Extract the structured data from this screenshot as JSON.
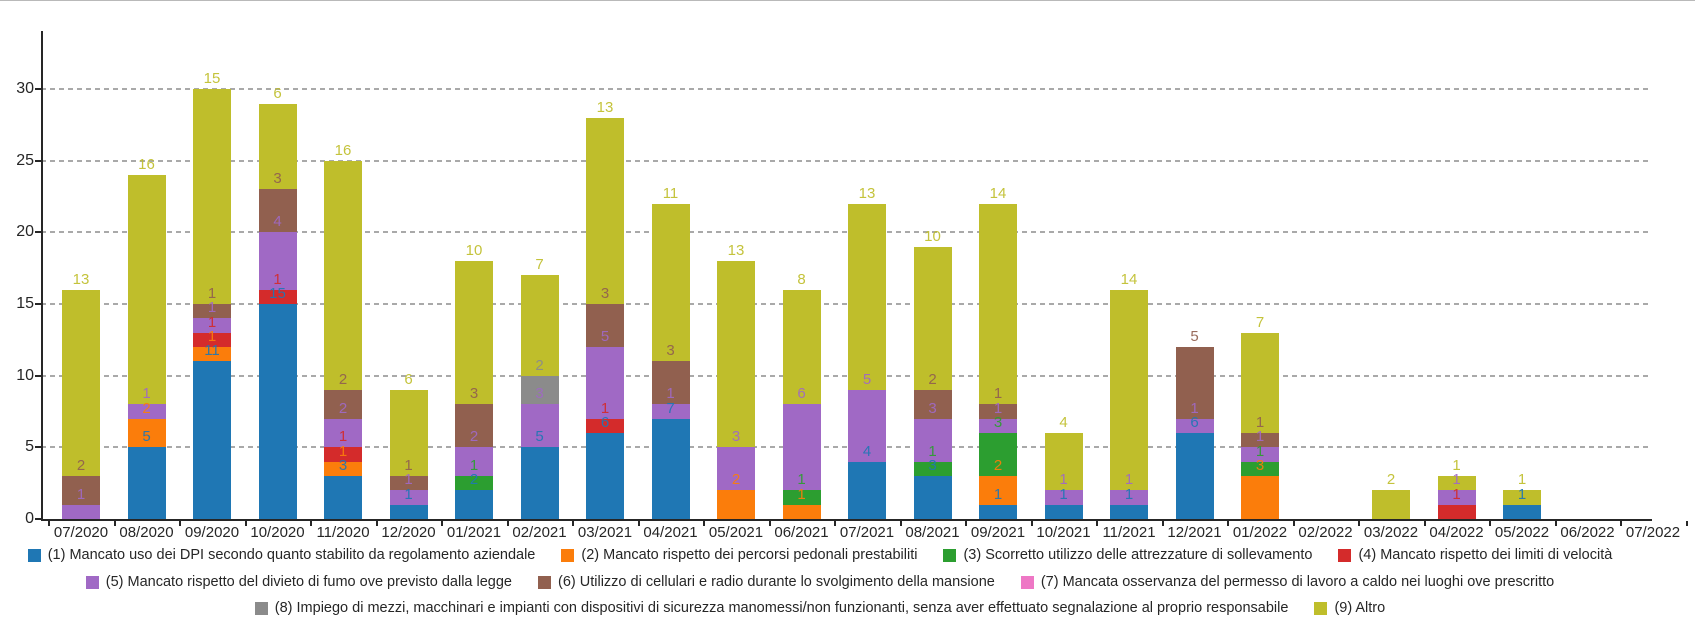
{
  "chart_data": {
    "type": "bar",
    "variant": "stacked-vertical",
    "title": "",
    "xlabel": "",
    "ylabel": "",
    "y_axis": {
      "ticks": [
        0,
        5,
        10,
        15,
        20,
        25,
        30
      ],
      "ylim": [
        0,
        34
      ],
      "grid": "dashed-horizontal"
    },
    "legend_position": "bottom",
    "legend_rows": [
      [
        0,
        1,
        2,
        3
      ],
      [
        4,
        5,
        6
      ],
      [
        7,
        8
      ]
    ],
    "categories": [
      "07/2020",
      "08/2020",
      "09/2020",
      "10/2020",
      "11/2020",
      "12/2020",
      "01/2021",
      "02/2021",
      "03/2021",
      "04/2021",
      "05/2021",
      "06/2021",
      "07/2021",
      "08/2021",
      "09/2021",
      "10/2021",
      "11/2021",
      "12/2021",
      "01/2022",
      "02/2022",
      "03/2022",
      "04/2022",
      "05/2022",
      "06/2022",
      "07/2022"
    ],
    "series": [
      {
        "name": "(1) Mancato uso dei DPI secondo quanto stabilito da regolamento aziendale",
        "color": "#1f77b4",
        "values": [
          0,
          5,
          11,
          15,
          3,
          1,
          2,
          5,
          6,
          7,
          0,
          0,
          4,
          3,
          1,
          1,
          1,
          6,
          0,
          0,
          0,
          0,
          1,
          0,
          0
        ]
      },
      {
        "name": "(2) Mancato rispetto dei percorsi pedonali prestabiliti",
        "color": "#fb7d0b",
        "values": [
          0,
          2,
          1,
          0,
          1,
          0,
          0,
          0,
          0,
          0,
          2,
          1,
          0,
          0,
          2,
          0,
          0,
          0,
          3,
          0,
          0,
          0,
          0,
          0,
          0
        ]
      },
      {
        "name": "(3) Scorretto utilizzo delle attrezzature di sollevamento",
        "color": "#2c9e30",
        "values": [
          0,
          0,
          0,
          0,
          0,
          0,
          1,
          0,
          0,
          0,
          0,
          1,
          0,
          1,
          3,
          0,
          0,
          0,
          1,
          0,
          0,
          0,
          0,
          0,
          0
        ]
      },
      {
        "name": "(4) Mancato rispetto dei limiti di velocità",
        "color": "#d42b2b",
        "values": [
          0,
          0,
          1,
          1,
          1,
          0,
          0,
          0,
          1,
          0,
          0,
          0,
          0,
          0,
          0,
          0,
          0,
          0,
          0,
          0,
          0,
          1,
          0,
          0,
          0
        ]
      },
      {
        "name": "(5) Mancato rispetto del divieto di fumo ove previsto dalla legge",
        "color": "#a069c5",
        "values": [
          1,
          1,
          1,
          4,
          2,
          1,
          2,
          3,
          5,
          1,
          3,
          6,
          5,
          3,
          1,
          1,
          1,
          1,
          1,
          0,
          0,
          1,
          0,
          0,
          0
        ]
      },
      {
        "name": "(6) Utilizzo di cellulari e radio durante lo svolgimento della mansione",
        "color": "#91604f",
        "values": [
          2,
          0,
          1,
          3,
          2,
          1,
          3,
          0,
          3,
          3,
          0,
          0,
          0,
          2,
          1,
          0,
          0,
          5,
          1,
          0,
          0,
          0,
          0,
          0,
          0
        ]
      },
      {
        "name": "(7) Mancata osservanza del permesso di lavoro a caldo nei luoghi ove prescritto",
        "color": "#ee77c5",
        "values": [
          0,
          0,
          0,
          0,
          0,
          0,
          0,
          0,
          0,
          0,
          0,
          0,
          0,
          0,
          0,
          0,
          0,
          0,
          0,
          0,
          0,
          0,
          0,
          0,
          0
        ]
      },
      {
        "name": "(8) Impiego di mezzi, macchinari e impianti con dispositivi di sicurezza manomessi/non funzionanti, senza aver effettuato segnalazione al proprio responsabile",
        "color": "#8b8b8b",
        "values": [
          0,
          0,
          0,
          0,
          0,
          0,
          0,
          2,
          0,
          0,
          0,
          0,
          0,
          0,
          0,
          0,
          0,
          0,
          0,
          0,
          0,
          0,
          0,
          0,
          0
        ]
      },
      {
        "name": "(9) Altro",
        "color": "#bfbe2b",
        "values": [
          13,
          16,
          15,
          6,
          16,
          6,
          10,
          7,
          13,
          11,
          13,
          8,
          13,
          10,
          14,
          4,
          14,
          0,
          7,
          0,
          2,
          1,
          1,
          0,
          0
        ]
      }
    ],
    "bar_totals": [
      16,
      24,
      30,
      29,
      25,
      9,
      18,
      17,
      28,
      22,
      18,
      16,
      22,
      19,
      22,
      6,
      16,
      12,
      13,
      0,
      2,
      3,
      2,
      0,
      0
    ],
    "data_labels": "each non-zero segment labeled with its value in the segment color, placed just above the segment top"
  }
}
